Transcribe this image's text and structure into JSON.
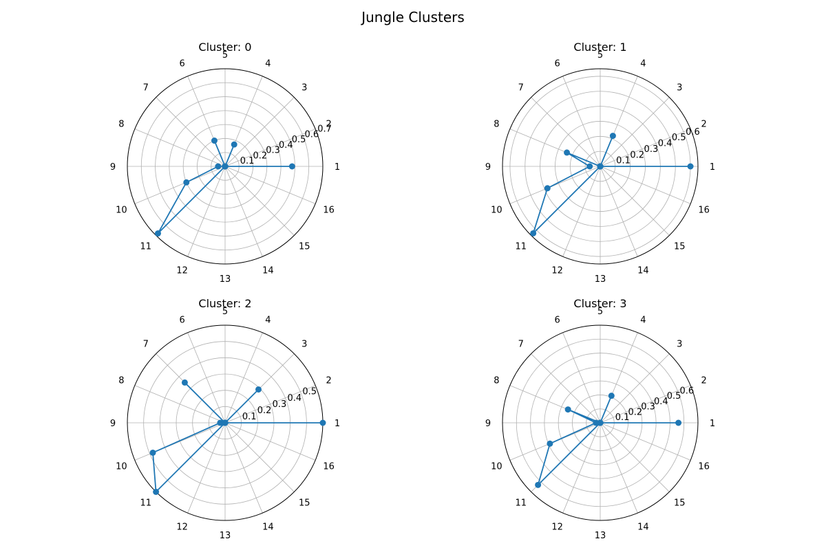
{
  "figure": {
    "title": "Jungle Clusters"
  },
  "chart_data": [
    {
      "type": "line",
      "projection": "polar",
      "title": "Cluster: 0",
      "angle_labels": [
        "1",
        "2",
        "3",
        "4",
        "5",
        "6",
        "7",
        "8",
        "9",
        "10",
        "11",
        "12",
        "13",
        "14",
        "15",
        "16"
      ],
      "r_ticks": [
        "0.1",
        "0.2",
        "0.3",
        "0.4",
        "0.5",
        "0.6",
        "0.7"
      ],
      "rmax": 0.7,
      "values": [
        0.48,
        0.0,
        0.0,
        0.17,
        0.0,
        0.2,
        0.0,
        0.0,
        0.05,
        0.3,
        0.68,
        0.0,
        0.0,
        0.0,
        0.0,
        0.0
      ],
      "marker": "circle",
      "color": "#1f77b4",
      "grid": true
    },
    {
      "type": "line",
      "projection": "polar",
      "title": "Cluster: 1",
      "angle_labels": [
        "1",
        "2",
        "3",
        "4",
        "5",
        "6",
        "7",
        "8",
        "9",
        "10",
        "11",
        "12",
        "13",
        "14",
        "15",
        "16"
      ],
      "r_ticks": [
        "0.1",
        "0.2",
        "0.3",
        "0.4",
        "0.5",
        "0.6"
      ],
      "rmax": 0.65,
      "values": [
        0.6,
        0.0,
        0.0,
        0.22,
        0.0,
        0.0,
        0.0,
        0.24,
        0.07,
        0.38,
        0.63,
        0.0,
        0.0,
        0.0,
        0.0,
        0.0
      ],
      "marker": "circle",
      "color": "#1f77b4",
      "grid": true
    },
    {
      "type": "line",
      "projection": "polar",
      "title": "Cluster: 2",
      "angle_labels": [
        "1",
        "2",
        "3",
        "4",
        "5",
        "6",
        "7",
        "8",
        "9",
        "10",
        "11",
        "12",
        "13",
        "14",
        "15",
        "16"
      ],
      "r_ticks": [
        "0.1",
        "0.2",
        "0.3",
        "0.4",
        "0.5"
      ],
      "rmax": 0.6,
      "values": [
        0.6,
        0.0,
        0.29,
        0.0,
        0.0,
        0.0,
        0.35,
        0.0,
        0.03,
        0.48,
        0.6,
        0.0,
        0.0,
        0.0,
        0.0,
        0.0
      ],
      "marker": "circle",
      "color": "#1f77b4",
      "grid": true
    },
    {
      "type": "line",
      "projection": "polar",
      "title": "Cluster: 3",
      "angle_labels": [
        "1",
        "2",
        "3",
        "4",
        "5",
        "6",
        "7",
        "8",
        "9",
        "10",
        "11",
        "12",
        "13",
        "14",
        "15",
        "16"
      ],
      "r_ticks": [
        "0.1",
        "0.2",
        "0.3",
        "0.4",
        "0.5",
        "0.6"
      ],
      "rmax": 0.7,
      "values": [
        0.56,
        0.0,
        0.0,
        0.21,
        0.0,
        0.0,
        0.0,
        0.25,
        0.03,
        0.39,
        0.63,
        0.0,
        0.0,
        0.0,
        0.0,
        0.0
      ],
      "marker": "circle",
      "color": "#1f77b4",
      "grid": true
    }
  ]
}
